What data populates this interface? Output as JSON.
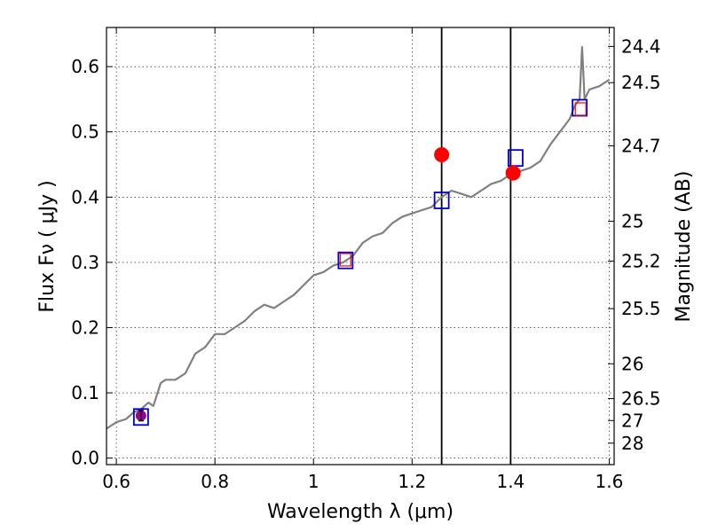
{
  "chart_data": {
    "type": "line",
    "xlabel": "Wavelength  λ (μm)",
    "ylabel": "Flux  Fν  ( μJy )",
    "ylabel_right": "Magnitude (AB)",
    "xlim": [
      0.58,
      1.61
    ],
    "ylim": [
      -0.01,
      0.66
    ],
    "grid": true,
    "x_ticks": [
      0.6,
      0.8,
      1.0,
      1.2,
      1.4,
      1.6
    ],
    "x_tick_labels": [
      "0.6",
      "0.8",
      "1",
      "1.2",
      "1.4",
      "1.6"
    ],
    "y_ticks": [
      0.0,
      0.1,
      0.2,
      0.3,
      0.4,
      0.5,
      0.6
    ],
    "y_tick_labels": [
      "0.0",
      "0.1",
      "0.2",
      "0.3",
      "0.4",
      "0.5",
      "0.6"
    ],
    "magnitude_ticks": [
      {
        "label": "24.4",
        "mag": 24.4
      },
      {
        "label": "24.5",
        "mag": 24.5
      },
      {
        "label": "24.7",
        "mag": 24.7
      },
      {
        "label": "25",
        "mag": 25.0
      },
      {
        "label": "25.2",
        "mag": 25.2
      },
      {
        "label": "25.5",
        "mag": 25.5
      },
      {
        "label": "26",
        "mag": 26.0
      },
      {
        "label": "26.5",
        "mag": 26.5
      },
      {
        "label": "27",
        "mag": 27.0
      },
      {
        "label": "28",
        "mag": 28.0
      }
    ],
    "vertical_lines": [
      1.26,
      1.4
    ],
    "series": [
      {
        "kind": "spectrum",
        "color": "#808080",
        "x": [
          0.58,
          0.6,
          0.62,
          0.635,
          0.65,
          0.665,
          0.675,
          0.69,
          0.7,
          0.72,
          0.74,
          0.76,
          0.78,
          0.8,
          0.82,
          0.84,
          0.86,
          0.88,
          0.9,
          0.92,
          0.94,
          0.96,
          0.98,
          1.0,
          1.02,
          1.04,
          1.06,
          1.08,
          1.1,
          1.12,
          1.14,
          1.16,
          1.18,
          1.2,
          1.22,
          1.24,
          1.26,
          1.28,
          1.3,
          1.32,
          1.34,
          1.36,
          1.38,
          1.4,
          1.42,
          1.44,
          1.46,
          1.48,
          1.5,
          1.52,
          1.53,
          1.54,
          1.545,
          1.55,
          1.56,
          1.58,
          1.6
        ],
        "y": [
          0.045,
          0.055,
          0.06,
          0.07,
          0.075,
          0.085,
          0.08,
          0.115,
          0.12,
          0.12,
          0.13,
          0.16,
          0.17,
          0.19,
          0.19,
          0.2,
          0.21,
          0.225,
          0.235,
          0.23,
          0.24,
          0.25,
          0.265,
          0.28,
          0.285,
          0.295,
          0.3,
          0.31,
          0.33,
          0.34,
          0.345,
          0.36,
          0.37,
          0.375,
          0.38,
          0.385,
          0.4,
          0.41,
          0.405,
          0.4,
          0.41,
          0.42,
          0.425,
          0.435,
          0.44,
          0.445,
          0.455,
          0.48,
          0.5,
          0.52,
          0.54,
          0.55,
          0.63,
          0.55,
          0.565,
          0.57,
          0.58
        ]
      },
      {
        "kind": "blue-squares",
        "color": "#0000cc",
        "x": [
          0.65,
          1.065,
          1.26,
          1.41,
          1.54
        ],
        "y": [
          0.063,
          0.303,
          0.395,
          0.46,
          0.537
        ]
      },
      {
        "kind": "red-squares",
        "color": "#ff0000",
        "x": [
          1.065,
          1.542
        ],
        "y": [
          0.304,
          0.535
        ]
      },
      {
        "kind": "red-circles",
        "color": "#ff0000",
        "x": [
          1.26,
          1.405
        ],
        "y": [
          0.465,
          0.437
        ]
      },
      {
        "kind": "purple-point",
        "color": "#990099",
        "x": [
          0.65
        ],
        "y": [
          0.065
        ],
        "yerr": [
          0.008
        ]
      }
    ]
  }
}
